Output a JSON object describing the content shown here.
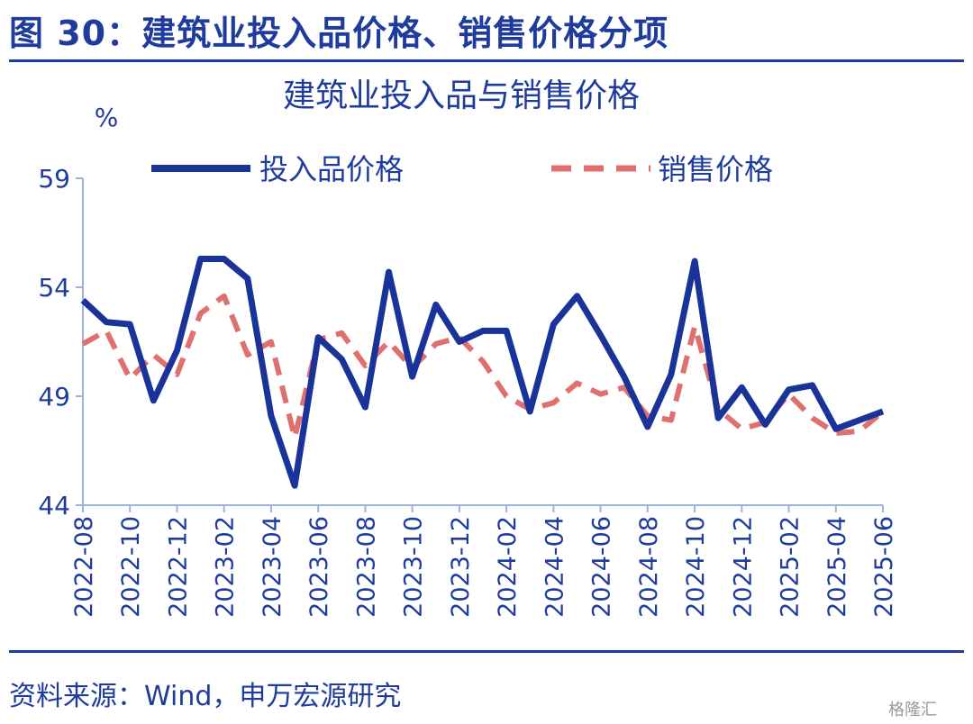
{
  "figure": {
    "title": "图 30：建筑业投入品价格、销售价格分项",
    "source": "资料来源：Wind，申万宏源研究",
    "watermark": "格隆汇"
  },
  "colors": {
    "accent": "#1f3c9c",
    "input_series": "#1a3399",
    "sales_series": "#e07070",
    "axis": "#9fb3d9"
  },
  "chart_data": {
    "type": "line",
    "title": "建筑业投入品与销售价格",
    "ylabel": "%",
    "ylim": [
      44,
      59
    ],
    "yticks": [
      44,
      49,
      54,
      59
    ],
    "grid": false,
    "legend": "top",
    "x": [
      "2022-08",
      "2022-09",
      "2022-10",
      "2022-11",
      "2022-12",
      "2023-01",
      "2023-02",
      "2023-03",
      "2023-04",
      "2023-05",
      "2023-06",
      "2023-07",
      "2023-08",
      "2023-09",
      "2023-10",
      "2023-11",
      "2023-12",
      "2024-01",
      "2024-02",
      "2024-03",
      "2024-04",
      "2024-05",
      "2024-06",
      "2024-07",
      "2024-08",
      "2024-09",
      "2024-10",
      "2024-11",
      "2024-12",
      "2025-01",
      "2025-02",
      "2025-03",
      "2025-04",
      "2025-05",
      "2025-06"
    ],
    "xtick_labels": [
      "2022-08",
      "2022-10",
      "2022-12",
      "2023-02",
      "2023-04",
      "2023-06",
      "2023-08",
      "2023-10",
      "2023-12",
      "2024-02",
      "2024-04",
      "2024-06",
      "2024-08",
      "2024-10",
      "2024-12",
      "2025-02",
      "2025-04",
      "2025-06"
    ],
    "series": [
      {
        "name": "投入品价格",
        "style": "solid",
        "values": [
          53.4,
          52.4,
          52.3,
          48.8,
          51.1,
          55.3,
          55.3,
          54.4,
          48.1,
          44.9,
          51.7,
          50.7,
          48.5,
          54.7,
          49.9,
          53.2,
          51.5,
          52.0,
          52.0,
          48.3,
          52.3,
          53.6,
          51.8,
          49.9,
          47.6,
          50.0,
          55.2,
          48.0,
          49.4,
          47.7,
          49.3,
          49.5,
          47.5,
          47.9,
          48.3
        ]
      },
      {
        "name": "销售价格",
        "style": "dashed",
        "values": [
          51.4,
          52.0,
          49.8,
          50.9,
          50.0,
          52.8,
          53.6,
          50.9,
          51.5,
          47.1,
          51.6,
          51.9,
          50.4,
          51.5,
          50.3,
          51.4,
          51.7,
          50.6,
          49.0,
          48.4,
          48.7,
          49.6,
          49.1,
          49.4,
          48.1,
          47.9,
          52.2,
          48.4,
          47.5,
          47.8,
          49.1,
          48.0,
          47.3,
          47.4,
          48.3
        ]
      }
    ]
  }
}
